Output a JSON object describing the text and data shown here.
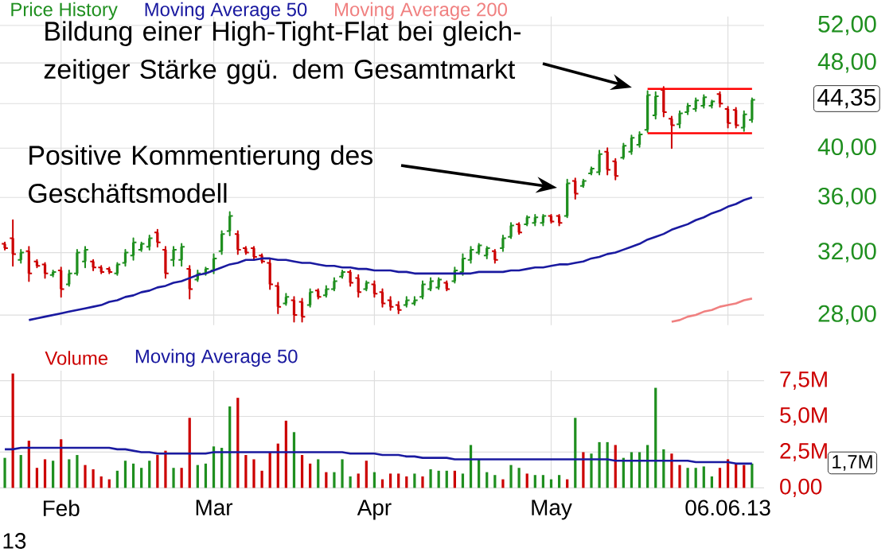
{
  "chart_data": [
    {
      "type": "candlestick",
      "categories": [
        null,
        null,
        null,
        null,
        null,
        null,
        null,
        null,
        null,
        null,
        null,
        null,
        null,
        null,
        null,
        null,
        null,
        null,
        null,
        null,
        null,
        null,
        null,
        null,
        null,
        null,
        null,
        null,
        null,
        null,
        null,
        null,
        null,
        null,
        null,
        null,
        null,
        null,
        null,
        null,
        null,
        null,
        null,
        null,
        null,
        null,
        null,
        null,
        null,
        null,
        null,
        null,
        null,
        null,
        null,
        null,
        null,
        null,
        null,
        null,
        null,
        null,
        null,
        null,
        null,
        null,
        null,
        null,
        null,
        null,
        null,
        null,
        null,
        null,
        null,
        null,
        null,
        null,
        null,
        null,
        null,
        null,
        null,
        null,
        null,
        null,
        null,
        null,
        null,
        null,
        null,
        null,
        null,
        null
      ],
      "ylim": [
        27.4,
        53
      ],
      "log": "y",
      "yticks": [
        {
          "value": 28,
          "label": "28,00"
        },
        {
          "value": 32,
          "label": "32,00"
        },
        {
          "value": 36,
          "label": "36,00"
        },
        {
          "value": 40,
          "label": "40,00"
        },
        {
          "value": 44,
          "label": null
        },
        {
          "value": 48,
          "label": "48,00"
        },
        {
          "value": 52,
          "label": "52,00"
        }
      ],
      "tick_labels": "y",
      "grid": true,
      "legend": "top left",
      "series": [
        {
          "name": "Price History",
          "type": "candlestick",
          "color": "#1f8f1f",
          "colors": [
            "#cc0000",
            "#cc0000",
            "#1f8f1f",
            "#cc0000",
            "#cc0000",
            "#cc0000",
            "#1f8f1f",
            "#cc0000",
            "#1f8f1f",
            "#1f8f1f",
            "#1f8f1f",
            "#cc0000",
            "#cc0000",
            "#cc0000",
            "#1f8f1f",
            "#1f8f1f",
            "#1f8f1f",
            "#1f8f1f",
            "#1f8f1f",
            "#cc0000",
            "#cc0000",
            "#1f8f1f",
            "#1f8f1f",
            "#cc0000",
            "#1f8f1f",
            "#1f8f1f",
            "#1f8f1f",
            "#1f8f1f",
            "#1f8f1f",
            "#cc0000",
            "#cc0000",
            "#cc0000",
            "#cc0000",
            "#cc0000",
            "#cc0000",
            "#1f8f1f",
            "#cc0000",
            "#cc0000",
            "#1f8f1f",
            "#cc0000",
            "#1f8f1f",
            "#1f8f1f",
            "#1f8f1f",
            "#cc0000",
            "#cc0000",
            "#1f8f1f",
            "#cc0000",
            "#cc0000",
            "#cc0000",
            "#cc0000",
            "#1f8f1f",
            "#1f8f1f",
            "#1f8f1f",
            "#1f8f1f",
            "#1f8f1f",
            "#cc0000",
            "#1f8f1f",
            "#1f8f1f",
            "#1f8f1f",
            "#1f8f1f",
            "#1f8f1f",
            "#cc0000",
            "#1f8f1f",
            "#1f8f1f",
            "#cc0000",
            "#1f8f1f",
            "#1f8f1f",
            "#1f8f1f",
            "#cc0000",
            "#cc0000",
            "#1f8f1f",
            "#cc0000",
            "#1f8f1f",
            "#1f8f1f",
            "#1f8f1f",
            "#cc0000",
            "#cc0000",
            "#1f8f1f",
            "#1f8f1f",
            "#1f8f1f",
            "#1f8f1f",
            "#1f8f1f",
            "#cc0000",
            "#cc0000",
            "#1f8f1f",
            "#1f8f1f",
            "#1f8f1f",
            "#1f8f1f",
            "#1f8f1f",
            "#cc0000",
            "#cc0000",
            "#cc0000",
            "#1f8f1f",
            "#1f8f1f"
          ],
          "ohlc": [
            [
              32.6,
              32.7,
              32.2,
              32.3
            ],
            [
              33.0,
              34.3,
              31.1,
              31.9
            ],
            [
              31.5,
              32.2,
              31.3,
              32.0
            ],
            [
              32.1,
              32.4,
              30.1,
              30.6
            ],
            [
              31.4,
              31.5,
              31.0,
              31.1
            ],
            [
              31.2,
              31.3,
              30.3,
              30.6
            ],
            [
              30.5,
              30.8,
              30.4,
              30.7
            ],
            [
              30.8,
              31.0,
              29.1,
              29.6
            ],
            [
              29.9,
              30.8,
              29.8,
              30.6
            ],
            [
              30.6,
              32.2,
              30.5,
              32.0
            ],
            [
              31.4,
              32.4,
              31.0,
              32.2
            ],
            [
              31.4,
              31.5,
              30.8,
              31.0
            ],
            [
              31.0,
              31.1,
              30.6,
              30.7
            ],
            [
              30.9,
              31.0,
              30.6,
              30.7
            ],
            [
              30.6,
              31.3,
              30.5,
              31.2
            ],
            [
              31.3,
              32.2,
              31.1,
              32.0
            ],
            [
              31.8,
              33.0,
              31.5,
              32.7
            ],
            [
              32.2,
              32.7,
              32.1,
              32.6
            ],
            [
              32.4,
              33.2,
              32.2,
              33.0
            ],
            [
              33.4,
              33.6,
              32.4,
              32.7
            ],
            [
              32.2,
              32.4,
              30.3,
              30.6
            ],
            [
              31.5,
              32.4,
              31.1,
              32.2
            ],
            [
              31.5,
              32.6,
              31.1,
              32.4
            ],
            [
              30.9,
              31.1,
              29.0,
              29.6
            ],
            [
              30.2,
              30.8,
              30.1,
              30.6
            ],
            [
              30.6,
              31.0,
              30.5,
              30.9
            ],
            [
              30.8,
              31.9,
              30.6,
              31.6
            ],
            [
              32.1,
              33.5,
              31.9,
              33.3
            ],
            [
              33.5,
              34.9,
              33.2,
              34.6
            ],
            [
              33.3,
              33.5,
              31.9,
              32.2
            ],
            [
              32.3,
              32.4,
              31.9,
              32.0
            ],
            [
              32.3,
              32.4,
              31.5,
              31.7
            ],
            [
              31.8,
              31.9,
              31.3,
              31.4
            ],
            [
              31.3,
              31.5,
              29.6,
              29.9
            ],
            [
              29.8,
              30.0,
              28.1,
              28.5
            ],
            [
              28.7,
              29.3,
              28.6,
              29.1
            ],
            [
              28.9,
              29.1,
              27.6,
              28.0
            ],
            [
              28.8,
              29.0,
              27.6,
              27.9
            ],
            [
              28.6,
              29.6,
              28.5,
              29.4
            ],
            [
              29.5,
              29.6,
              29.0,
              29.1
            ],
            [
              29.2,
              29.8,
              29.1,
              29.6
            ],
            [
              29.6,
              30.3,
              29.5,
              30.1
            ],
            [
              30.4,
              30.8,
              30.3,
              30.7
            ],
            [
              30.7,
              30.8,
              29.8,
              30.0
            ],
            [
              30.3,
              30.5,
              29.1,
              29.4
            ],
            [
              29.6,
              30.1,
              29.5,
              30.0
            ],
            [
              29.9,
              30.1,
              29.1,
              29.3
            ],
            [
              29.4,
              29.6,
              28.5,
              28.7
            ],
            [
              28.9,
              29.1,
              28.3,
              28.5
            ],
            [
              28.6,
              28.8,
              28.1,
              28.3
            ],
            [
              28.6,
              29.1,
              28.5,
              28.9
            ],
            [
              28.7,
              29.1,
              28.6,
              28.9
            ],
            [
              29.1,
              30.1,
              29.0,
              29.9
            ],
            [
              29.6,
              30.3,
              29.5,
              30.1
            ],
            [
              29.7,
              30.3,
              29.6,
              30.2
            ],
            [
              30.0,
              30.1,
              29.5,
              29.6
            ],
            [
              30.1,
              31.0,
              30.0,
              30.8
            ],
            [
              30.7,
              31.9,
              30.5,
              31.6
            ],
            [
              31.5,
              32.4,
              31.3,
              32.2
            ],
            [
              32.0,
              32.6,
              31.9,
              32.5
            ],
            [
              31.8,
              32.4,
              31.6,
              32.3
            ],
            [
              32.1,
              32.2,
              31.3,
              31.5
            ],
            [
              32.3,
              33.2,
              32.1,
              33.0
            ],
            [
              33.1,
              34.1,
              33.0,
              33.9
            ],
            [
              34.0,
              34.1,
              33.3,
              33.4
            ],
            [
              34.0,
              34.6,
              33.9,
              34.5
            ],
            [
              34.1,
              34.7,
              33.9,
              34.5
            ],
            [
              34.1,
              34.7,
              33.9,
              34.6
            ],
            [
              34.6,
              34.7,
              34.1,
              34.2
            ],
            [
              34.6,
              34.7,
              33.9,
              34.1
            ],
            [
              34.6,
              37.4,
              34.5,
              37.1
            ],
            [
              37.3,
              37.5,
              35.9,
              36.3
            ],
            [
              36.9,
              37.4,
              36.8,
              37.3
            ],
            [
              37.9,
              38.4,
              37.8,
              38.3
            ],
            [
              38.0,
              39.8,
              37.8,
              39.5
            ],
            [
              39.7,
              40.0,
              37.8,
              38.2
            ],
            [
              38.9,
              39.1,
              37.4,
              37.7
            ],
            [
              39.2,
              40.4,
              39.1,
              40.2
            ],
            [
              39.7,
              41.1,
              39.5,
              40.9
            ],
            [
              40.3,
              41.4,
              40.1,
              41.2
            ],
            [
              41.6,
              45.2,
              41.4,
              44.8
            ],
            [
              42.9,
              45.1,
              42.6,
              44.7
            ],
            [
              45.3,
              45.6,
              42.8,
              43.2
            ],
            [
              42.6,
              42.8,
              40.0,
              42.0
            ],
            [
              42.1,
              43.3,
              41.8,
              43.1
            ],
            [
              43.2,
              44.0,
              43.0,
              43.8
            ],
            [
              43.5,
              44.5,
              43.3,
              44.3
            ],
            [
              43.8,
              44.8,
              43.6,
              44.6
            ],
            [
              43.8,
              44.3,
              43.6,
              44.2
            ],
            [
              44.9,
              45.1,
              43.7,
              44.0
            ],
            [
              43.5,
              43.7,
              41.8,
              42.2
            ],
            [
              43.4,
              43.6,
              41.8,
              42.0
            ],
            [
              41.8,
              43.3,
              41.5,
              43.0
            ],
            [
              42.5,
              44.5,
              42.3,
              44.35
            ]
          ]
        },
        {
          "name": "Moving Average 50",
          "type": "line",
          "color": "#1a1aa0",
          "values": [
            null,
            null,
            null,
            27.7,
            27.8,
            27.9,
            28.0,
            28.1,
            28.2,
            28.3,
            28.4,
            28.5,
            28.6,
            28.8,
            28.9,
            29.1,
            29.2,
            29.4,
            29.5,
            29.7,
            29.8,
            30.0,
            30.1,
            30.3,
            30.5,
            30.6,
            30.8,
            31.0,
            31.2,
            31.3,
            31.5,
            31.5,
            31.6,
            31.6,
            31.5,
            31.5,
            31.4,
            31.3,
            31.3,
            31.2,
            31.1,
            31.1,
            31.0,
            31.0,
            30.9,
            30.9,
            30.8,
            30.8,
            30.8,
            30.7,
            30.7,
            30.6,
            30.6,
            30.6,
            30.6,
            30.6,
            30.6,
            30.6,
            30.6,
            30.7,
            30.7,
            30.7,
            30.7,
            30.8,
            30.8,
            30.9,
            31.0,
            31.0,
            31.1,
            31.2,
            31.2,
            31.3,
            31.4,
            31.6,
            31.7,
            31.9,
            32.0,
            32.2,
            32.4,
            32.6,
            32.9,
            33.1,
            33.3,
            33.6,
            33.8,
            34.0,
            34.3,
            34.5,
            34.8,
            35.0,
            35.3,
            35.5,
            35.8,
            36.0
          ]
        },
        {
          "name": "Moving Average 200",
          "type": "line",
          "color": "#f08080",
          "values": [
            null,
            null,
            null,
            null,
            null,
            null,
            null,
            null,
            null,
            null,
            null,
            null,
            null,
            null,
            null,
            null,
            null,
            null,
            null,
            null,
            null,
            null,
            null,
            null,
            null,
            null,
            null,
            null,
            null,
            null,
            null,
            null,
            null,
            null,
            null,
            null,
            null,
            null,
            null,
            null,
            null,
            null,
            null,
            null,
            null,
            null,
            null,
            null,
            null,
            null,
            null,
            null,
            null,
            null,
            null,
            null,
            null,
            null,
            null,
            null,
            null,
            null,
            null,
            null,
            null,
            null,
            null,
            null,
            null,
            null,
            null,
            null,
            null,
            null,
            null,
            null,
            null,
            null,
            null,
            null,
            null,
            null,
            null,
            27.6,
            27.7,
            27.9,
            28.0,
            28.2,
            28.3,
            28.5,
            28.6,
            28.7,
            28.9,
            29.0
          ]
        },
        {
          "type": "line",
          "color": "#ff0000",
          "values": [
            null,
            null,
            null,
            null,
            null,
            null,
            null,
            null,
            null,
            null,
            null,
            null,
            null,
            null,
            null,
            null,
            null,
            null,
            null,
            null,
            null,
            null,
            null,
            null,
            null,
            null,
            null,
            null,
            null,
            null,
            null,
            null,
            null,
            null,
            null,
            null,
            null,
            null,
            null,
            null,
            null,
            null,
            null,
            null,
            null,
            null,
            null,
            null,
            null,
            null,
            null,
            null,
            null,
            null,
            null,
            null,
            null,
            null,
            null,
            null,
            null,
            null,
            null,
            null,
            null,
            null,
            null,
            null,
            null,
            null,
            null,
            null,
            null,
            null,
            null,
            null,
            null,
            null,
            null,
            null,
            45.4,
            45.4,
            45.4,
            45.4,
            45.4,
            45.4,
            45.4,
            45.4,
            45.4,
            45.4,
            45.4,
            45.4,
            45.4,
            45.4
          ]
        },
        {
          "type": "line",
          "color": "#ff0000",
          "values": [
            null,
            null,
            null,
            null,
            null,
            null,
            null,
            null,
            null,
            null,
            null,
            null,
            null,
            null,
            null,
            null,
            null,
            null,
            null,
            null,
            null,
            null,
            null,
            null,
            null,
            null,
            null,
            null,
            null,
            null,
            null,
            null,
            null,
            null,
            null,
            null,
            null,
            null,
            null,
            null,
            null,
            null,
            null,
            null,
            null,
            null,
            null,
            null,
            null,
            null,
            null,
            null,
            null,
            null,
            null,
            null,
            null,
            null,
            null,
            null,
            null,
            null,
            null,
            null,
            null,
            null,
            null,
            null,
            null,
            null,
            null,
            null,
            null,
            null,
            null,
            null,
            null,
            null,
            null,
            null,
            41.3,
            41.3,
            41.3,
            41.3,
            41.3,
            41.3,
            41.3,
            41.3,
            41.3,
            41.3,
            41.3,
            41.3,
            41.3,
            41.3
          ]
        }
      ],
      "annotations": [
        "Bildung einer High-Tight-Flat bei gleich-zeitiger Stärke ggü. dem Gesamtmarkt",
        "Positive Kommentierung des Geschäftsmodell",
        "44,35"
      ]
    },
    {
      "type": "bar",
      "categories": [
        null,
        null,
        null,
        null,
        null,
        null,
        null,
        "Feb",
        null,
        null,
        null,
        null,
        null,
        null,
        null,
        null,
        null,
        null,
        null,
        null,
        null,
        null,
        null,
        null,
        null,
        null,
        "Mar",
        null,
        null,
        null,
        null,
        null,
        null,
        null,
        null,
        null,
        null,
        null,
        null,
        null,
        null,
        null,
        null,
        null,
        null,
        null,
        "Apr",
        null,
        null,
        null,
        null,
        null,
        null,
        null,
        null,
        null,
        null,
        null,
        null,
        null,
        null,
        null,
        null,
        null,
        null,
        null,
        null,
        null,
        "May",
        null,
        null,
        null,
        null,
        null,
        null,
        null,
        null,
        null,
        null,
        null,
        null,
        null,
        null,
        null,
        null,
        null,
        null,
        null,
        null,
        null,
        "06.06.13",
        null,
        null,
        null
      ],
      "ylim": [
        0,
        8.2
      ],
      "yticks": [
        {
          "value": 0,
          "label": "0,00"
        },
        {
          "value": 2.5,
          "label": "2,5M"
        },
        {
          "value": 5,
          "label": "5,0M"
        },
        {
          "value": 7.5,
          "label": "7,5M"
        }
      ],
      "grid": true,
      "legend": "top left",
      "series": [
        {
          "name": "Volume",
          "color": "#cc0000",
          "colors": [
            "#1f8f1f",
            "#cc0000",
            "#1f8f1f",
            "#cc0000",
            "#cc0000",
            "#cc0000",
            "#1f8f1f",
            "#cc0000",
            "#1f8f1f",
            "#1f8f1f",
            "#cc0000",
            "#cc0000",
            "#cc0000",
            "#cc0000",
            "#1f8f1f",
            "#1f8f1f",
            "#1f8f1f",
            "#1f8f1f",
            "#1f8f1f",
            "#cc0000",
            "#cc0000",
            "#1f8f1f",
            "#cc0000",
            "#cc0000",
            "#1f8f1f",
            "#1f8f1f",
            "#1f8f1f",
            "#1f8f1f",
            "#1f8f1f",
            "#cc0000",
            "#cc0000",
            "#cc0000",
            "#cc0000",
            "#cc0000",
            "#cc0000",
            "#cc0000",
            "#1f8f1f",
            "#cc0000",
            "#cc0000",
            "#1f8f1f",
            "#cc0000",
            "#1f8f1f",
            "#1f8f1f",
            "#1f8f1f",
            "#cc0000",
            "#cc0000",
            "#1f8f1f",
            "#cc0000",
            "#cc0000",
            "#cc0000",
            "#cc0000",
            "#1f8f1f",
            "#cc0000",
            "#1f8f1f",
            "#1f8f1f",
            "#1f8f1f",
            "#cc0000",
            "#1f8f1f",
            "#1f8f1f",
            "#1f8f1f",
            "#1f8f1f",
            "#1f8f1f",
            "#cc0000",
            "#1f8f1f",
            "#1f8f1f",
            "#cc0000",
            "#1f8f1f",
            "#1f8f1f",
            "#1f8f1f",
            "#1f8f1f",
            "#cc0000",
            "#1f8f1f",
            "#cc0000",
            "#1f8f1f",
            "#1f8f1f",
            "#1f8f1f",
            "#cc0000",
            "#1f8f1f",
            "#1f8f1f",
            "#1f8f1f",
            "#1f8f1f",
            "#1f8f1f",
            "#1f8f1f",
            "#cc0000",
            "#cc0000",
            "#1f8f1f",
            "#1f8f1f",
            "#1f8f1f",
            "#1f8f1f",
            "#cc0000",
            "#cc0000",
            "#cc0000",
            "#cc0000",
            "#1f8f1f"
          ],
          "values": [
            2.1,
            8.0,
            2.3,
            3.3,
            1.4,
            2.0,
            1.9,
            3.4,
            2.0,
            2.3,
            1.6,
            1.3,
            0.8,
            0.6,
            1.2,
            1.9,
            1.7,
            1.4,
            1.9,
            2.3,
            2.6,
            1.4,
            1.4,
            4.9,
            1.6,
            1.7,
            2.9,
            2.8,
            5.7,
            6.3,
            2.3,
            2.0,
            1.2,
            2.5,
            3.1,
            4.7,
            3.9,
            2.3,
            1.7,
            2.0,
            1.1,
            1.1,
            2.0,
            0.8,
            1.0,
            1.9,
            1.1,
            0.6,
            1.0,
            1.0,
            0.8,
            1.0,
            0.8,
            1.3,
            1.2,
            1.2,
            1.2,
            1.0,
            3.0,
            2.0,
            1.1,
            0.9,
            0.6,
            1.6,
            1.4,
            1.0,
            0.9,
            0.9,
            0.6,
            0.9,
            0.6,
            4.9,
            2.5,
            2.4,
            3.2,
            3.2,
            3.0,
            2.1,
            2.5,
            2.5,
            3.0,
            7.0,
            2.7,
            2.4,
            1.6,
            1.4,
            1.4,
            1.5,
            0.8,
            1.4,
            2.0,
            1.7,
            1.6,
            1.7
          ]
        },
        {
          "name": "Moving Average 50",
          "type": "line",
          "color": "#1a1aa0",
          "values": [
            2.7,
            2.7,
            2.8,
            2.8,
            2.8,
            2.8,
            2.8,
            2.8,
            2.8,
            2.8,
            2.8,
            2.8,
            2.8,
            2.8,
            2.7,
            2.7,
            2.6,
            2.5,
            2.5,
            2.4,
            2.4,
            2.4,
            2.4,
            2.4,
            2.4,
            2.4,
            2.5,
            2.5,
            2.5,
            2.5,
            2.5,
            2.5,
            2.5,
            2.5,
            2.5,
            2.5,
            2.5,
            2.5,
            2.5,
            2.5,
            2.5,
            2.5,
            2.5,
            2.4,
            2.4,
            2.4,
            2.4,
            2.3,
            2.3,
            2.3,
            2.2,
            2.2,
            2.1,
            2.1,
            2.1,
            2.1,
            2.0,
            2.0,
            2.0,
            2.0,
            2.0,
            2.0,
            2.0,
            2.0,
            2.0,
            2.0,
            2.0,
            2.0,
            2.0,
            2.0,
            2.0,
            2.0,
            2.0,
            2.0,
            2.0,
            2.0,
            1.9,
            1.9,
            1.9,
            1.9,
            1.9,
            1.9,
            1.9,
            1.9,
            1.9,
            1.9,
            1.8,
            1.8,
            1.8,
            1.8,
            1.8,
            1.7,
            1.7,
            1.7
          ]
        }
      ],
      "annotations": [
        "13",
        "1,7M"
      ]
    }
  ]
}
